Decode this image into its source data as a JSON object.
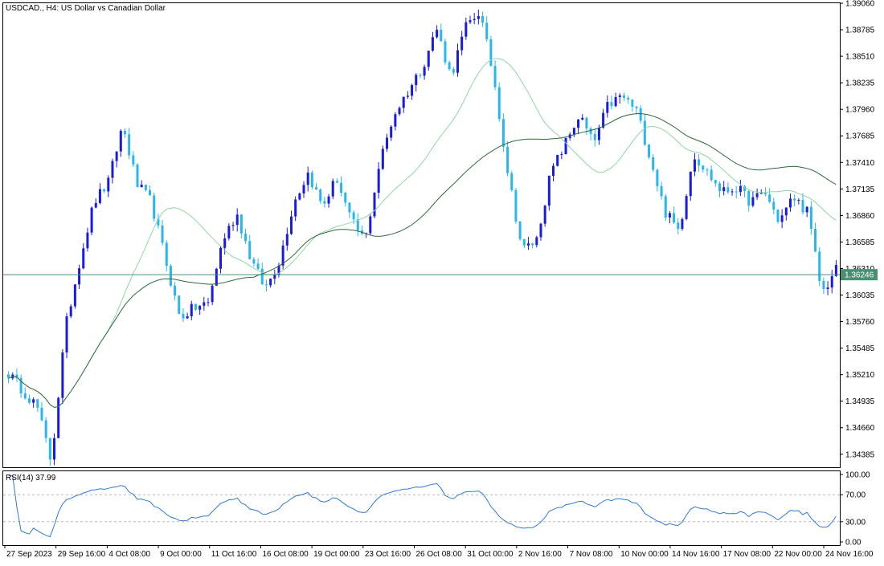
{
  "main_chart": {
    "title": "USDCAD., H4:  US Dollar vs Canadian Dollar",
    "current_price": "1.36246",
    "current_price_value": 1.36246,
    "y_ticks": [
      "1.39060",
      "1.38785",
      "1.38510",
      "1.38235",
      "1.37960",
      "1.37685",
      "1.37410",
      "1.37135",
      "1.36860",
      "1.36585",
      "1.36310",
      "1.36035",
      "1.35760",
      "1.35485",
      "1.35210",
      "1.34935",
      "1.34660",
      "1.34385"
    ],
    "colors": {
      "bull": "#1a1ae6",
      "bear": "#29b6ef",
      "ma_fast": "#90d6a4",
      "ma_slow": "#2e6b3b",
      "price_line": "#4b8f73"
    }
  },
  "rsi": {
    "label": "RSI(14) 37.99",
    "value": 37.99,
    "y_ticks": [
      "100.00",
      "70.00",
      "30.00",
      "0.00"
    ],
    "levels": [
      70,
      30
    ],
    "color": "#2e7ad6"
  },
  "x_axis": {
    "labels": [
      "27 Sep 2023",
      "29 Sep 16:00",
      "4 Oct 08:00",
      "9 Oct 00:00",
      "11 Oct 16:00",
      "16 Oct 08:00",
      "19 Oct 00:00",
      "23 Oct 16:00",
      "26 Oct 08:00",
      "31 Oct 00:00",
      "2 Nov 16:00",
      "7 Nov 08:00",
      "10 Nov 00:00",
      "14 Nov 16:00",
      "17 Nov 08:00",
      "22 Nov 00:00",
      "24 Nov 16:00"
    ]
  },
  "chart_data": {
    "type": "candlestick",
    "symbol": "USDCAD.",
    "timeframe": "H4",
    "ylim": [
      1.3425,
      1.3906
    ],
    "anchors": [
      {
        "c": 1.3522
      },
      {
        "c": 1.3505
      },
      {
        "c": 1.3488
      },
      {
        "c": 1.343
      },
      {
        "c": 1.357
      },
      {
        "c": 1.364
      },
      {
        "c": 1.37
      },
      {
        "c": 1.372
      },
      {
        "c": 1.378
      },
      {
        "c": 1.3718
      },
      {
        "c": 1.37
      },
      {
        "c": 1.364
      },
      {
        "c": 1.358
      },
      {
        "c": 1.359
      },
      {
        "c": 1.3595
      },
      {
        "c": 1.366
      },
      {
        "c": 1.3688
      },
      {
        "c": 1.364
      },
      {
        "c": 1.361
      },
      {
        "c": 1.364
      },
      {
        "c": 1.37
      },
      {
        "c": 1.373
      },
      {
        "c": 1.3695
      },
      {
        "c": 1.3725
      },
      {
        "c": 1.368
      },
      {
        "c": 1.366
      },
      {
        "c": 1.374
      },
      {
        "c": 1.379
      },
      {
        "c": 1.3815
      },
      {
        "c": 1.384
      },
      {
        "c": 1.388
      },
      {
        "c": 1.383
      },
      {
        "c": 1.388
      },
      {
        "c": 1.3898
      },
      {
        "c": 1.383
      },
      {
        "c": 1.373
      },
      {
        "c": 1.365
      },
      {
        "c": 1.366
      },
      {
        "c": 1.373
      },
      {
        "c": 1.376
      },
      {
        "c": 1.379
      },
      {
        "c": 1.376
      },
      {
        "c": 1.38
      },
      {
        "c": 1.381
      },
      {
        "c": 1.3795
      },
      {
        "c": 1.3745
      },
      {
        "c": 1.369
      },
      {
        "c": 1.367
      },
      {
        "c": 1.375
      },
      {
        "c": 1.373
      },
      {
        "c": 1.371
      },
      {
        "c": 1.3715
      },
      {
        "c": 1.37
      },
      {
        "c": 1.371
      },
      {
        "c": 1.368
      },
      {
        "c": 1.3705
      },
      {
        "c": 1.369
      },
      {
        "c": 1.3605
      },
      {
        "c": 1.363
      }
    ],
    "last_rsi": 37.99
  }
}
